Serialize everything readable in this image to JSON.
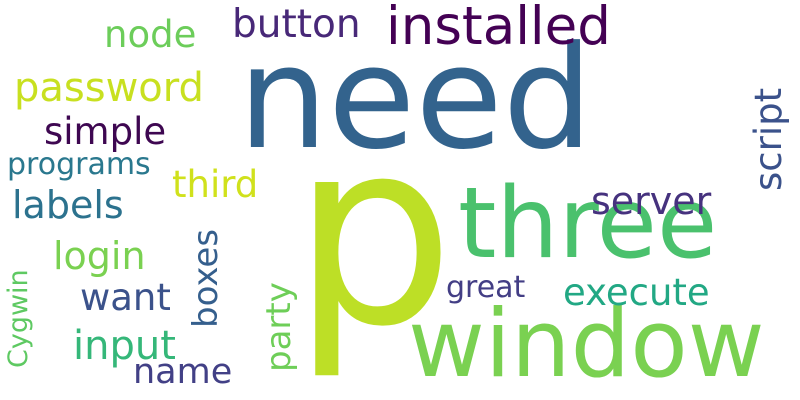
{
  "words": [
    {
      "text": "need",
      "color": "#33638d"
    },
    {
      "text": "p",
      "color": "#bddf26"
    },
    {
      "text": "three",
      "color": "#4ac16d"
    },
    {
      "text": "window",
      "color": "#7ad151"
    },
    {
      "text": "installed",
      "color": "#440154"
    },
    {
      "text": "button",
      "color": "#482878"
    },
    {
      "text": "node",
      "color": "#6ccd5a"
    },
    {
      "text": "password",
      "color": "#c8e020"
    },
    {
      "text": "simple",
      "color": "#3e0751"
    },
    {
      "text": "programs",
      "color": "#2a788e"
    },
    {
      "text": "labels",
      "color": "#2c728e"
    },
    {
      "text": "third",
      "color": "#d0e11c"
    },
    {
      "text": "script",
      "color": "#3b528b"
    },
    {
      "text": "server",
      "color": "#46327e"
    },
    {
      "text": "boxes",
      "color": "#355f8d"
    },
    {
      "text": "login",
      "color": "#7ad151"
    },
    {
      "text": "want",
      "color": "#3b528b"
    },
    {
      "text": "party",
      "color": "#6ece58"
    },
    {
      "text": "great",
      "color": "#433e85"
    },
    {
      "text": "execute",
      "color": "#22a884"
    },
    {
      "text": "Cygwin",
      "color": "#5ec962"
    },
    {
      "text": "input",
      "color": "#35b779"
    },
    {
      "text": "name",
      "color": "#424086"
    }
  ]
}
